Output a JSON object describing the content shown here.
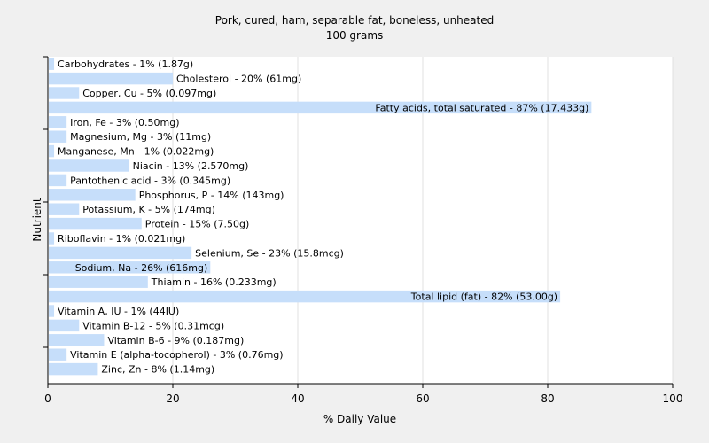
{
  "chart_data": {
    "type": "bar",
    "orientation": "horizontal",
    "title": "Pork, cured, ham, separable fat, boneless, unheated",
    "subtitle": "100 grams",
    "xlabel": "% Daily Value",
    "ylabel": "Nutrient",
    "xlim": [
      0,
      100
    ],
    "xticks": [
      0,
      20,
      40,
      60,
      80,
      100
    ],
    "grid": true,
    "bar_color": "#c6defa",
    "categories": [
      "Carbohydrates",
      "Cholesterol",
      "Copper, Cu",
      "Fatty acids, total saturated",
      "Iron, Fe",
      "Magnesium, Mg",
      "Manganese, Mn",
      "Niacin",
      "Pantothenic acid",
      "Phosphorus, P",
      "Potassium, K",
      "Protein",
      "Riboflavin",
      "Selenium, Se",
      "Sodium, Na",
      "Thiamin",
      "Total lipid (fat)",
      "Vitamin A, IU",
      "Vitamin B-12",
      "Vitamin B-6",
      "Vitamin E (alpha-tocopherol)",
      "Zinc, Zn"
    ],
    "values": [
      1,
      20,
      5,
      87,
      3,
      3,
      1,
      13,
      3,
      14,
      5,
      15,
      1,
      23,
      26,
      16,
      82,
      1,
      5,
      9,
      3,
      8
    ],
    "labels": [
      "Carbohydrates - 1% (1.87g)",
      "Cholesterol - 20% (61mg)",
      "Copper, Cu - 5% (0.097mg)",
      "Fatty acids, total saturated - 87% (17.433g)",
      "Iron, Fe - 3% (0.50mg)",
      "Magnesium, Mg - 3% (11mg)",
      "Manganese, Mn - 1% (0.022mg)",
      "Niacin - 13% (2.570mg)",
      "Pantothenic acid - 3% (0.345mg)",
      "Phosphorus, P - 14% (143mg)",
      "Potassium, K - 5% (174mg)",
      "Protein - 15% (7.50g)",
      "Riboflavin - 1% (0.021mg)",
      "Selenium, Se - 23% (15.8mcg)",
      "Sodium, Na - 26% (616mg)",
      "Thiamin - 16% (0.233mg)",
      "Total lipid (fat) - 82% (53.00g)",
      "Vitamin A, IU - 1% (44IU)",
      "Vitamin B-12 - 5% (0.31mcg)",
      "Vitamin B-6 - 9% (0.187mg)",
      "Vitamin E (alpha-tocopherol) - 3% (0.76mg)",
      "Zinc, Zn - 8% (1.14mg)"
    ]
  }
}
